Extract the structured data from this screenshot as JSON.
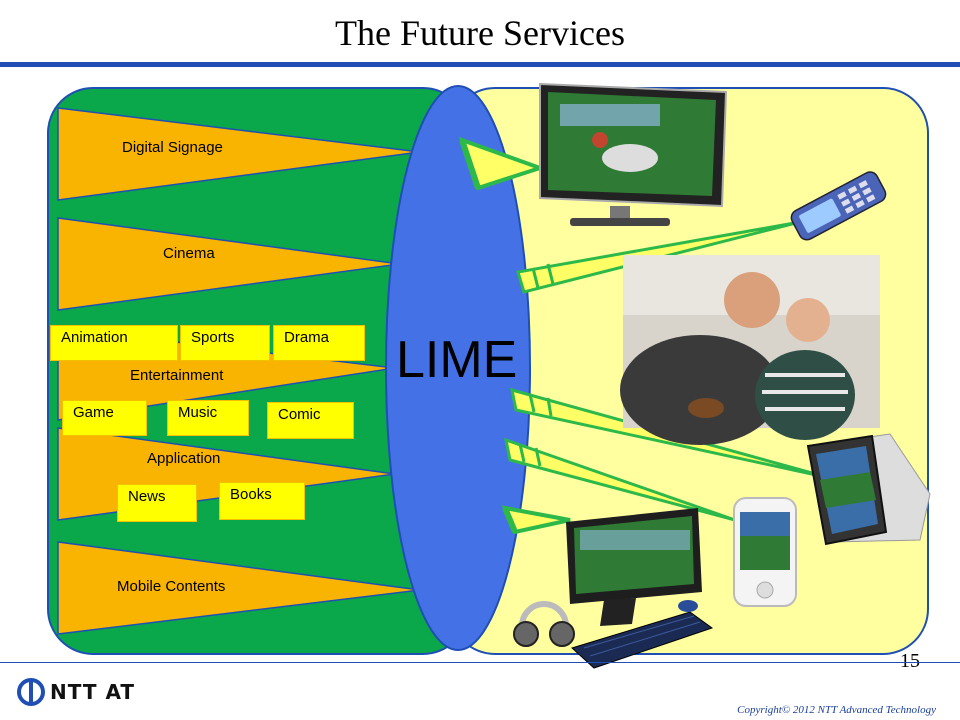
{
  "slide": {
    "title": "The Future Services",
    "page_number": "15",
    "copyright": "Copyright© 2012 NTT Advanced Technology",
    "logo_text": "NTT AT"
  },
  "center": {
    "label": "LIME"
  },
  "content_categories": [
    {
      "name": "Digital Signage"
    },
    {
      "name": "Cinema"
    },
    {
      "name": "Entertainment",
      "items": [
        "Animation",
        "Sports",
        "Drama"
      ]
    },
    {
      "name": "Application",
      "items": [
        "Game",
        "Music",
        "Comic",
        "News",
        "Books"
      ]
    },
    {
      "name": "Mobile Contents"
    }
  ],
  "devices": [
    "digital-signage-display-icon",
    "mobile-phone-icon",
    "family-watching-tv-photo",
    "tablet-icon",
    "smartphone-icon",
    "desktop-computer-icon"
  ],
  "colors": {
    "title_rule": "#1f4fb4",
    "left_panel": "#0aa84a",
    "right_panel": "#ffffa0",
    "triangles": "#f8b400",
    "lime_ellipse": "#4472e6",
    "sub_boxes": "#ffff00",
    "beams": "#2db84a"
  }
}
